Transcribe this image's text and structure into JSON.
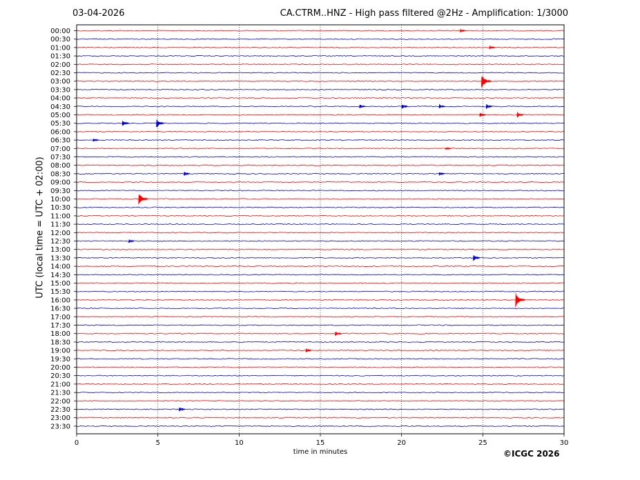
{
  "header": {
    "date": "03-04-2026",
    "title": "CA.CTRM..HNZ - High pass filtered @2Hz - Amplification: 1/3000"
  },
  "footer": {
    "copyright": "©ICGC 2026"
  },
  "colors": {
    "red": "#ff0000",
    "blue": "#0000cc",
    "axis": "#000000",
    "grid": "#000000"
  },
  "chart_data": {
    "type": "line",
    "title": "CA.CTRM..HNZ - High pass filtered @2Hz - Amplification: 1/3000",
    "xlabel": "time in minutes",
    "ylabel": "UTC (local time = UTC + 02:00)",
    "xlim": [
      0,
      30
    ],
    "x_ticks": [
      0,
      5,
      10,
      15,
      20,
      25,
      30
    ],
    "x_tick_labels": [
      "0",
      "5",
      "10",
      "15",
      "20",
      "25",
      "30"
    ],
    "grid": "vertical dotted lines at 5, 10, 15, 20, 25",
    "rows": [
      "00:00",
      "00:30",
      "01:00",
      "01:30",
      "02:00",
      "02:30",
      "03:00",
      "03:30",
      "04:00",
      "04:30",
      "05:00",
      "05:30",
      "06:00",
      "06:30",
      "07:00",
      "07:30",
      "08:00",
      "08:30",
      "09:00",
      "09:30",
      "10:00",
      "10:30",
      "11:00",
      "11:30",
      "12:00",
      "12:30",
      "13:00",
      "13:30",
      "14:00",
      "14:30",
      "15:00",
      "15:30",
      "16:00",
      "16:30",
      "17:00",
      "17:30",
      "18:00",
      "18:30",
      "19:00",
      "19:30",
      "20:00",
      "20:30",
      "21:00",
      "21:30",
      "22:00",
      "22:30",
      "23:00",
      "23:30"
    ],
    "row_colors": "alternating red (even rows) and blue (odd rows)",
    "events": [
      {
        "row": "00:00",
        "minute": 23.7,
        "amp": 0.25
      },
      {
        "row": "01:00",
        "minute": 25.5,
        "amp": 0.3
      },
      {
        "row": "03:00",
        "minute": 25.0,
        "amp": 1.0
      },
      {
        "row": "04:30",
        "minute": 17.5,
        "amp": 0.3
      },
      {
        "row": "04:30",
        "minute": 20.1,
        "amp": 0.35
      },
      {
        "row": "04:30",
        "minute": 22.4,
        "amp": 0.3
      },
      {
        "row": "04:30",
        "minute": 25.3,
        "amp": 0.35
      },
      {
        "row": "05:00",
        "minute": 24.9,
        "amp": 0.35
      },
      {
        "row": "05:00",
        "minute": 27.2,
        "amp": 0.4
      },
      {
        "row": "05:30",
        "minute": 2.9,
        "amp": 0.45
      },
      {
        "row": "05:30",
        "minute": 5.0,
        "amp": 0.6
      },
      {
        "row": "06:30",
        "minute": 1.1,
        "amp": 0.25
      },
      {
        "row": "07:00",
        "minute": 22.8,
        "amp": 0.2
      },
      {
        "row": "08:30",
        "minute": 6.7,
        "amp": 0.3
      },
      {
        "row": "08:30",
        "minute": 22.4,
        "amp": 0.25
      },
      {
        "row": "10:00",
        "minute": 3.9,
        "amp": 0.9
      },
      {
        "row": "12:30",
        "minute": 3.3,
        "amp": 0.25
      },
      {
        "row": "13:30",
        "minute": 24.5,
        "amp": 0.45
      },
      {
        "row": "16:00",
        "minute": 27.1,
        "amp": 1.0
      },
      {
        "row": "18:00",
        "minute": 16.0,
        "amp": 0.35
      },
      {
        "row": "19:00",
        "minute": 14.2,
        "amp": 0.3
      },
      {
        "row": "22:30",
        "minute": 6.4,
        "amp": 0.3
      }
    ]
  }
}
